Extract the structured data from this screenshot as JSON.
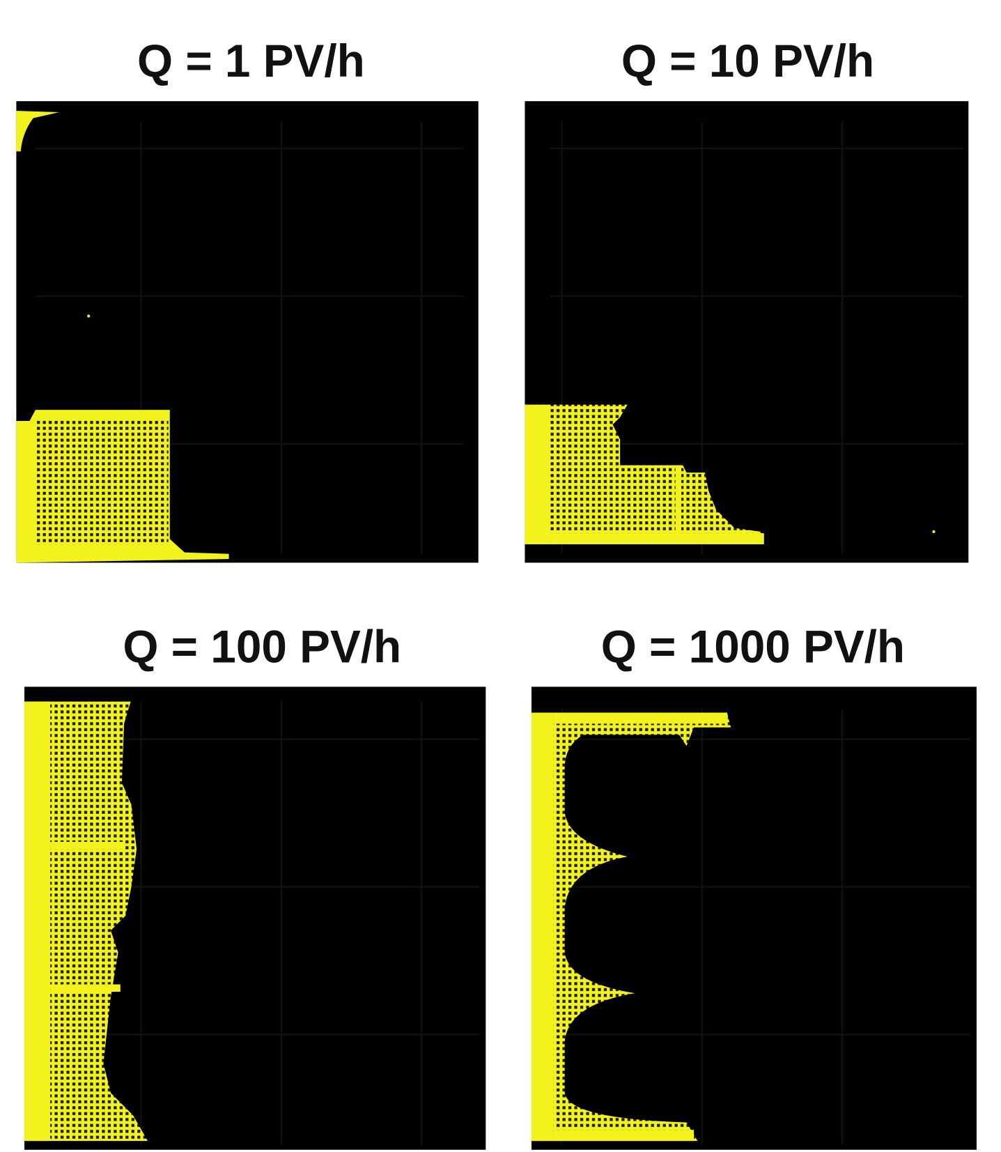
{
  "panels": [
    {
      "title": "Q = 1 PV/h"
    },
    {
      "title": "Q = 10 PV/h"
    },
    {
      "title": "Q = 100 PV/h"
    },
    {
      "title": "Q = 1000 PV/h"
    }
  ]
}
